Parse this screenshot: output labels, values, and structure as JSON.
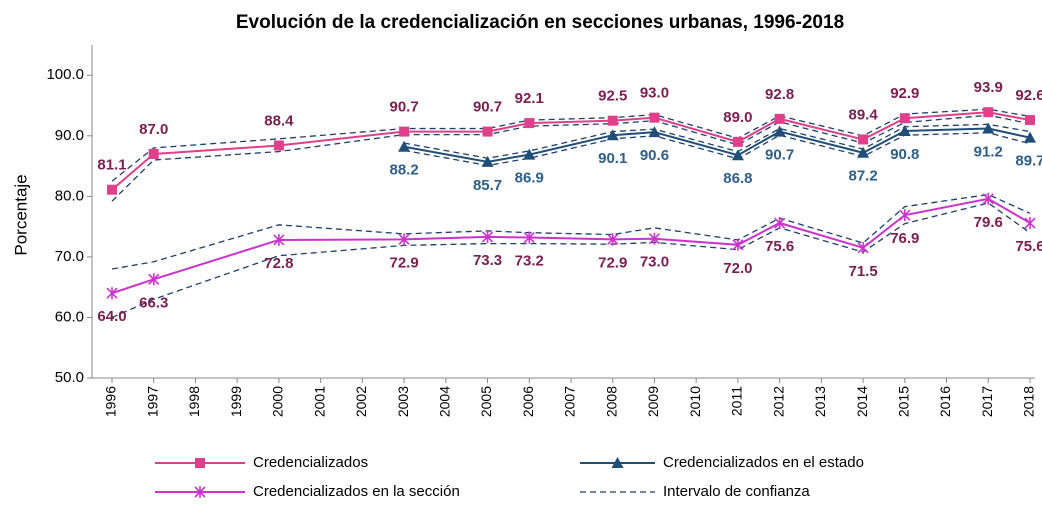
{
  "chart_data": {
    "type": "line",
    "title": "Evolución de la credencialización en secciones urbanas, 1996‑2018",
    "y_label": "Porcentaje",
    "x": [
      1996,
      1997,
      2000,
      2003,
      2005,
      2006,
      2008,
      2009,
      2011,
      2012,
      2014,
      2015,
      2017,
      2018
    ],
    "xlim": [
      1996,
      2018
    ],
    "xticks": [
      1996,
      1997,
      1998,
      1999,
      2000,
      2001,
      2002,
      2003,
      2004,
      2005,
      2006,
      2007,
      2008,
      2009,
      2010,
      2011,
      2012,
      2013,
      2014,
      2015,
      2016,
      2017,
      2018
    ],
    "ylim": [
      50,
      105
    ],
    "yticks": [
      {
        "value": 50,
        "label": "50.0"
      },
      {
        "value": 60,
        "label": "60.0"
      },
      {
        "value": 70,
        "label": "70.0"
      },
      {
        "value": 80,
        "label": "80.0"
      },
      {
        "value": 90,
        "label": "90.0"
      },
      {
        "value": 100,
        "label": "100.0"
      }
    ],
    "grid": false,
    "series": [
      {
        "name": "Credencializados",
        "color": "#e0408a",
        "marker": "square",
        "label_color": "#7b1f52",
        "label_position": "above",
        "values": [
          81.1,
          87.0,
          88.4,
          90.7,
          90.7,
          92.1,
          92.5,
          93.0,
          89.0,
          92.8,
          89.4,
          92.9,
          93.9,
          92.6
        ],
        "value_labels": [
          "81.1",
          "87.0",
          "88.4",
          "90.7",
          "90.7",
          "92.1",
          "92.5",
          "93.0",
          "89.0",
          "92.8",
          "89.4",
          "92.9",
          "93.9",
          "92.6"
        ]
      },
      {
        "name": "Credencializados en el estado",
        "color": "#1f4e79",
        "marker": "triangle",
        "label_color": "#2e5f86",
        "label_position": "below",
        "values": [
          null,
          null,
          null,
          88.2,
          85.7,
          86.9,
          90.1,
          90.6,
          86.8,
          90.7,
          87.2,
          90.8,
          91.2,
          89.7
        ],
        "value_labels": [
          null,
          null,
          null,
          "88.2",
          "85.7",
          "86.9",
          "90.1",
          "90.6",
          "86.8",
          "90.7",
          "87.2",
          "90.8",
          "91.2",
          "89.7"
        ]
      },
      {
        "name": "Credencializados en la sección",
        "color": "#cc33cc",
        "marker": "star",
        "label_color": "#7b1f52",
        "label_position": "below",
        "values": [
          64.0,
          66.3,
          72.8,
          72.9,
          73.3,
          73.2,
          72.9,
          73.0,
          72.0,
          75.6,
          71.5,
          76.9,
          79.6,
          75.6
        ],
        "value_labels": [
          "64.0",
          "66.3",
          "72.8",
          "72.9",
          "73.3",
          "73.2",
          "72.9",
          "73.0",
          "72.0",
          "75.6",
          "71.5",
          "76.9",
          "79.6",
          "75.6"
        ]
      }
    ],
    "confidence_interval": {
      "name": "Intervalo de confianza",
      "color": "#1f3f6e",
      "bands": [
        {
          "upper": [
            82.5,
            88.0,
            89.5,
            91.2,
            91.2,
            92.6,
            93.0,
            93.5,
            89.6,
            93.3,
            90.0,
            93.6,
            94.4,
            93.2
          ],
          "lower": [
            79.2,
            86.0,
            87.4,
            90.2,
            90.2,
            91.6,
            92.0,
            92.5,
            88.5,
            92.3,
            88.8,
            92.2,
            93.4,
            92.0
          ]
        },
        {
          "upper": [
            null,
            null,
            null,
            88.8,
            86.3,
            87.5,
            90.7,
            91.1,
            87.4,
            91.2,
            87.8,
            91.5,
            91.9,
            90.7
          ],
          "lower": [
            null,
            null,
            null,
            87.6,
            85.1,
            86.3,
            89.5,
            90.0,
            86.2,
            90.1,
            86.6,
            90.1,
            90.5,
            88.7
          ]
        },
        {
          "upper": [
            68.0,
            69.2,
            75.3,
            73.8,
            74.3,
            74.0,
            73.7,
            74.8,
            72.8,
            76.4,
            72.3,
            78.3,
            80.3,
            77.2
          ],
          "lower": [
            60.0,
            63.0,
            70.2,
            71.9,
            72.2,
            72.2,
            72.1,
            72.4,
            71.2,
            74.8,
            70.8,
            75.5,
            78.9,
            74.0
          ]
        }
      ]
    }
  }
}
